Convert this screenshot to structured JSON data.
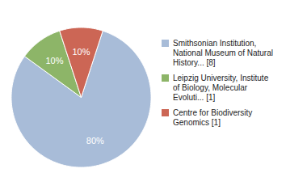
{
  "chart_data": {
    "type": "pie",
    "categories": [
      "Smithsonian Institution,\nNational Museum of Natural\nHistory... [8]",
      "Leipzig University, Institute\nof Biology, Molecular\nEvoluti... [1]",
      "Centre for Biodiversity\nGenomics [1]"
    ],
    "values": [
      80,
      10,
      10
    ],
    "value_labels": [
      "80%",
      "10%",
      "10%"
    ],
    "colors": [
      "#a8bcd8",
      "#8db568",
      "#cc6655"
    ],
    "data_labels": true,
    "legend": "right"
  }
}
